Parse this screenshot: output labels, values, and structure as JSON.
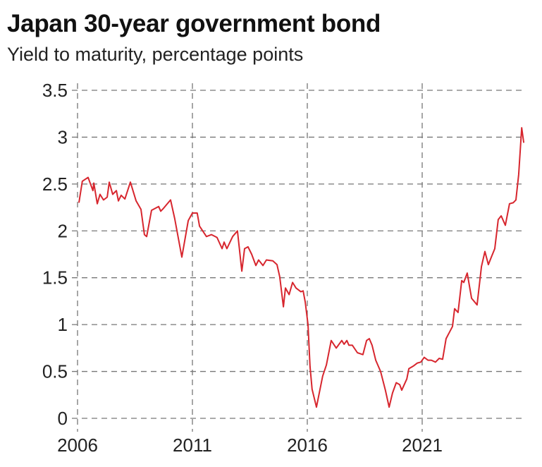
{
  "chart_data": {
    "type": "line",
    "title": "Japan 30-year government bond",
    "subtitle": "Yield to maturity, percentage points",
    "xlabel": "",
    "ylabel": "",
    "xlim": [
      2006,
      2025.5
    ],
    "ylim": [
      0,
      3.5
    ],
    "grid": true,
    "line_color": "#d7262e",
    "y_ticks": [
      0,
      0.5,
      1,
      1.5,
      2,
      2.5,
      3,
      3.5
    ],
    "y_tick_labels": [
      "0",
      "0.5",
      "1",
      "1.5",
      "2",
      "2.5",
      "3",
      "3.5"
    ],
    "x_ticks": [
      2006,
      2011,
      2016,
      2021
    ],
    "x_tick_labels": [
      "2006",
      "2011",
      "2016",
      "2021"
    ],
    "series": [
      {
        "x": [
          2006.06,
          2006.21,
          2006.46,
          2006.67,
          2006.71,
          2006.86,
          2006.98,
          2007.13,
          2007.29,
          2007.38,
          2007.53,
          2007.69,
          2007.78,
          2007.9,
          2008.06,
          2008.3,
          2008.55,
          2008.76,
          2008.91,
          2009.01,
          2009.22,
          2009.53,
          2009.62,
          2009.74,
          2010.05,
          2010.23,
          2010.54,
          2010.69,
          2010.82,
          2011.0,
          2011.21,
          2011.31,
          2011.61,
          2011.83,
          2012.07,
          2012.29,
          2012.38,
          2012.5,
          2012.75,
          2012.96,
          2013.15,
          2013.27,
          2013.42,
          2013.58,
          2013.76,
          2013.88,
          2014.07,
          2014.22,
          2014.5,
          2014.68,
          2014.8,
          2014.96,
          2015.05,
          2015.21,
          2015.36,
          2015.51,
          2015.72,
          2015.82,
          2015.91,
          2016.03,
          2016.12,
          2016.21,
          2016.4,
          2016.52,
          2016.67,
          2016.83,
          2017.04,
          2017.26,
          2017.5,
          2017.6,
          2017.72,
          2017.81,
          2017.96,
          2018.18,
          2018.42,
          2018.58,
          2018.7,
          2018.82,
          2018.98,
          2019.19,
          2019.4,
          2019.56,
          2019.71,
          2019.87,
          2020.02,
          2020.11,
          2020.33,
          2020.42,
          2020.63,
          2020.79,
          2020.94,
          2021.09,
          2021.25,
          2021.4,
          2021.58,
          2021.74,
          2021.89,
          2022.04,
          2022.32,
          2022.41,
          2022.56,
          2022.72,
          2022.81,
          2022.96,
          2023.15,
          2023.39,
          2023.58,
          2023.73,
          2023.88,
          2024.01,
          2024.16,
          2024.31,
          2024.44,
          2024.62,
          2024.8,
          2024.96,
          2025.08,
          2025.2,
          2025.33,
          2025.42
        ],
        "y": [
          2.3,
          2.53,
          2.57,
          2.43,
          2.51,
          2.29,
          2.39,
          2.33,
          2.36,
          2.52,
          2.39,
          2.43,
          2.32,
          2.38,
          2.34,
          2.52,
          2.32,
          2.23,
          1.96,
          1.94,
          2.22,
          2.26,
          2.21,
          2.24,
          2.33,
          2.13,
          1.72,
          1.93,
          2.11,
          2.19,
          2.19,
          2.05,
          1.94,
          1.96,
          1.93,
          1.81,
          1.88,
          1.81,
          1.94,
          2.0,
          1.57,
          1.81,
          1.83,
          1.75,
          1.63,
          1.69,
          1.63,
          1.69,
          1.68,
          1.64,
          1.51,
          1.19,
          1.39,
          1.32,
          1.45,
          1.39,
          1.35,
          1.36,
          1.24,
          1.0,
          0.55,
          0.31,
          0.12,
          0.27,
          0.45,
          0.57,
          0.83,
          0.75,
          0.83,
          0.79,
          0.83,
          0.78,
          0.78,
          0.7,
          0.68,
          0.83,
          0.85,
          0.78,
          0.62,
          0.5,
          0.3,
          0.12,
          0.27,
          0.38,
          0.36,
          0.3,
          0.42,
          0.53,
          0.56,
          0.59,
          0.6,
          0.65,
          0.62,
          0.62,
          0.6,
          0.64,
          0.63,
          0.85,
          0.98,
          1.17,
          1.13,
          1.47,
          1.45,
          1.55,
          1.28,
          1.21,
          1.62,
          1.78,
          1.64,
          1.72,
          1.81,
          2.12,
          2.16,
          2.06,
          2.29,
          2.3,
          2.33,
          2.6,
          3.1,
          2.94
        ]
      }
    ]
  }
}
